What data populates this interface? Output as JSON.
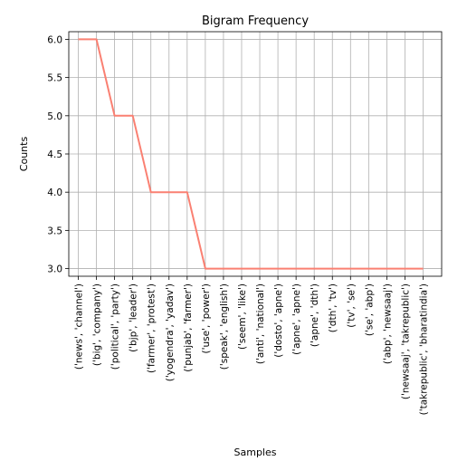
{
  "chart_data": {
    "type": "line",
    "title": "Bigram Frequency",
    "xlabel": "Samples",
    "ylabel": "Counts",
    "categories": [
      "('news', 'channel')",
      "('big', 'company')",
      "('political', 'party')",
      "('bjp', 'leader')",
      "('farmer', 'protest')",
      "('yogendra', 'yadav')",
      "('punjab', 'farmer')",
      "('use', 'power')",
      "('speak', 'english')",
      "('seem', 'like')",
      "('anti', 'national')",
      "('dosto', 'apne')",
      "('apne', 'apne')",
      "('apne', 'dth')",
      "('dth', 'tv')",
      "('tv', 'se')",
      "('se', 'abp')",
      "('abp', 'newsaaj')",
      "('newsaaj', 'takrepublic')",
      "('takrepublic', 'bharatindia')"
    ],
    "values": [
      6,
      6,
      5,
      5,
      4,
      4,
      4,
      3,
      3,
      3,
      3,
      3,
      3,
      3,
      3,
      3,
      3,
      3,
      3,
      3
    ],
    "yticks": [
      "3.0",
      "3.5",
      "4.0",
      "4.5",
      "5.0",
      "5.5",
      "6.0"
    ],
    "ylim": [
      2.9,
      6.1
    ],
    "grid": true,
    "line_color": "#fa8072"
  }
}
